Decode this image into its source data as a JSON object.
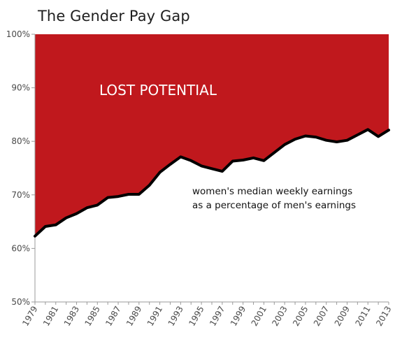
{
  "chart_data": {
    "type": "area",
    "title": "The Gender Pay Gap",
    "xlabel": "",
    "ylabel": "",
    "ylim": [
      50,
      100
    ],
    "y_ticks": [
      "50%",
      "60%",
      "70%",
      "80%",
      "90%",
      "100%"
    ],
    "y_tick_values": [
      50,
      60,
      70,
      80,
      90,
      100
    ],
    "x_tick_labels": [
      "1979",
      "1981",
      "1983",
      "1985",
      "1987",
      "1989",
      "1991",
      "1993",
      "1995",
      "1997",
      "1999",
      "2001",
      "2003",
      "2005",
      "2007",
      "2009",
      "2011",
      "2013"
    ],
    "years": [
      1979,
      1980,
      1981,
      1982,
      1983,
      1984,
      1985,
      1986,
      1987,
      1988,
      1989,
      1990,
      1991,
      1992,
      1993,
      1994,
      1995,
      1996,
      1997,
      1998,
      1999,
      2000,
      2001,
      2002,
      2003,
      2004,
      2005,
      2006,
      2007,
      2008,
      2009,
      2010,
      2011,
      2012,
      2013
    ],
    "values": [
      62.3,
      64.1,
      64.4,
      65.7,
      66.5,
      67.6,
      68.1,
      69.5,
      69.7,
      70.1,
      70.1,
      71.8,
      74.2,
      75.7,
      77.1,
      76.4,
      75.4,
      74.9,
      74.4,
      76.3,
      76.5,
      76.9,
      76.4,
      77.9,
      79.4,
      80.4,
      81.0,
      80.8,
      80.2,
      79.9,
      80.2,
      81.2,
      82.2,
      80.9,
      82.1
    ],
    "grid": false,
    "legend": "none",
    "annotations": {
      "gap_label": "LOST POTENTIAL",
      "line_label_1": "women's median weekly earnings",
      "line_label_2": "as a percentage of men's earnings"
    },
    "colors": {
      "gap_fill": "#c0181d",
      "line": "#000000",
      "axis": "#9a9a9a",
      "tick_text": "#4a4a4a",
      "gap_text": "#ffffff"
    }
  }
}
